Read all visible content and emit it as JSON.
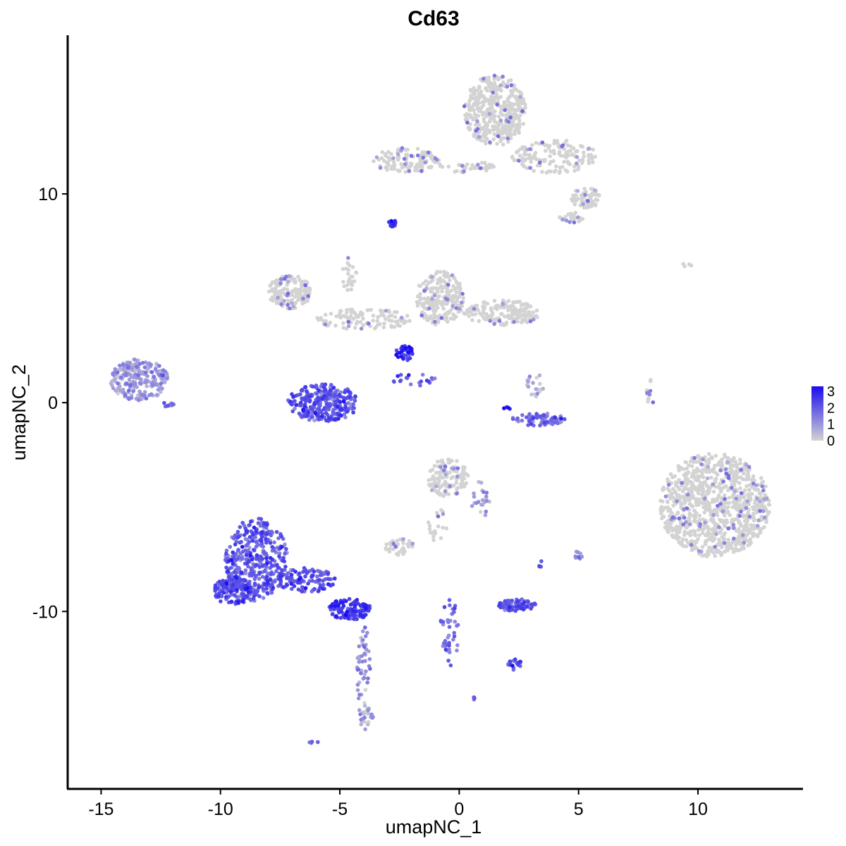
{
  "chart_data": {
    "type": "scatter",
    "title": "Cd63",
    "xlabel": "umapNC_1",
    "ylabel": "umapNC_2",
    "xlim": [
      -16.4,
      14.4
    ],
    "ylim": [
      -18.5,
      17.6
    ],
    "x_ticks": [
      -15,
      -10,
      -5,
      0,
      5,
      10
    ],
    "x_tick_labels": [
      "-15",
      "-10",
      "-5",
      "0",
      "5",
      "10"
    ],
    "y_ticks": [
      -10,
      0,
      10
    ],
    "y_tick_labels": [
      "-10",
      "0",
      "10"
    ],
    "grid": false,
    "color_scale": {
      "low": "#d3d3d3",
      "high": "#1a0cf0",
      "min": 0,
      "max": 3.3,
      "ticks": [
        0,
        1,
        2,
        3
      ],
      "tick_labels": [
        "0",
        "1",
        "2",
        "3"
      ],
      "legend_position": "right"
    },
    "clusters": [
      {
        "cx": 1.5,
        "cy": 14.0,
        "rx": 1.3,
        "ry": 1.7,
        "n": 420,
        "expr": 0.08
      },
      {
        "cx": -2.2,
        "cy": 11.6,
        "rx": 1.4,
        "ry": 0.6,
        "n": 110,
        "expr": 0.1
      },
      {
        "cx": 0.3,
        "cy": 11.3,
        "rx": 1.2,
        "ry": 0.3,
        "n": 40,
        "expr": 0.05
      },
      {
        "cx": 4.0,
        "cy": 11.8,
        "rx": 1.8,
        "ry": 0.8,
        "n": 150,
        "expr": 0.15
      },
      {
        "cx": 5.3,
        "cy": 9.8,
        "rx": 0.6,
        "ry": 0.5,
        "n": 60,
        "expr": 0.1
      },
      {
        "cx": 4.7,
        "cy": 8.9,
        "rx": 0.5,
        "ry": 0.3,
        "n": 25,
        "expr": 0.2
      },
      {
        "cx": -2.8,
        "cy": 8.6,
        "rx": 0.15,
        "ry": 0.2,
        "n": 18,
        "expr": 2.5
      },
      {
        "cx": -7.1,
        "cy": 5.3,
        "rx": 0.9,
        "ry": 0.8,
        "n": 160,
        "expr": 0.05
      },
      {
        "cx": -4.0,
        "cy": 4.0,
        "rx": 2.0,
        "ry": 0.5,
        "n": 110,
        "expr": 0.05
      },
      {
        "cx": -0.8,
        "cy": 5.0,
        "rx": 1.0,
        "ry": 1.3,
        "n": 220,
        "expr": 0.2
      },
      {
        "cx": 1.8,
        "cy": 4.3,
        "rx": 1.6,
        "ry": 0.6,
        "n": 170,
        "expr": 0.2
      },
      {
        "cx": -4.6,
        "cy": 6.2,
        "rx": 0.3,
        "ry": 1.0,
        "n": 25,
        "expr": 0.05
      },
      {
        "cx": -2.3,
        "cy": 2.4,
        "rx": 0.35,
        "ry": 0.4,
        "n": 40,
        "expr": 2.6
      },
      {
        "cx": -1.9,
        "cy": 1.1,
        "rx": 0.9,
        "ry": 0.3,
        "n": 20,
        "expr": 1.8
      },
      {
        "cx": -13.4,
        "cy": 1.1,
        "rx": 1.2,
        "ry": 1.0,
        "n": 240,
        "expr": 0.8
      },
      {
        "cx": -12.2,
        "cy": -0.1,
        "rx": 0.3,
        "ry": 0.1,
        "n": 10,
        "expr": 1.6
      },
      {
        "cx": -5.7,
        "cy": 0.0,
        "rx": 1.5,
        "ry": 0.9,
        "n": 280,
        "expr": 1.9
      },
      {
        "cx": 3.3,
        "cy": -0.8,
        "rx": 1.2,
        "ry": 0.3,
        "n": 70,
        "expr": 1.7
      },
      {
        "cx": 3.2,
        "cy": 0.8,
        "rx": 0.4,
        "ry": 0.6,
        "n": 20,
        "expr": 0.5
      },
      {
        "cx": 2.0,
        "cy": -0.3,
        "rx": 0.15,
        "ry": 0.1,
        "n": 4,
        "expr": 3.2
      },
      {
        "cx": 8.0,
        "cy": 0.5,
        "rx": 0.2,
        "ry": 0.6,
        "n": 15,
        "expr": 0.05
      },
      {
        "cx": 10.7,
        "cy": -4.9,
        "rx": 2.3,
        "ry": 2.5,
        "n": 950,
        "expr": 0.05
      },
      {
        "cx": -0.5,
        "cy": -3.6,
        "rx": 0.9,
        "ry": 0.9,
        "n": 130,
        "expr": 0.2
      },
      {
        "cx": 0.9,
        "cy": -4.6,
        "rx": 0.4,
        "ry": 0.9,
        "n": 25,
        "expr": 0.8
      },
      {
        "cx": -0.9,
        "cy": -5.9,
        "rx": 0.4,
        "ry": 0.9,
        "n": 20,
        "expr": 0.1
      },
      {
        "cx": -2.5,
        "cy": -6.9,
        "rx": 0.6,
        "ry": 0.4,
        "n": 40,
        "expr": 0.1
      },
      {
        "cx": -8.5,
        "cy": -7.5,
        "rx": 1.3,
        "ry": 2.0,
        "n": 380,
        "expr": 1.9
      },
      {
        "cx": -9.5,
        "cy": -9.0,
        "rx": 0.8,
        "ry": 0.7,
        "n": 130,
        "expr": 2.0
      },
      {
        "cx": -6.4,
        "cy": -8.5,
        "rx": 1.2,
        "ry": 0.6,
        "n": 110,
        "expr": 2.0
      },
      {
        "cx": -4.6,
        "cy": -9.9,
        "rx": 0.9,
        "ry": 0.5,
        "n": 130,
        "expr": 2.3
      },
      {
        "cx": -4.0,
        "cy": -12.8,
        "rx": 0.3,
        "ry": 2.2,
        "n": 45,
        "expr": 1.0
      },
      {
        "cx": -3.9,
        "cy": -15.0,
        "rx": 0.4,
        "ry": 0.7,
        "n": 25,
        "expr": 0.5
      },
      {
        "cx": 2.4,
        "cy": -9.7,
        "rx": 0.8,
        "ry": 0.3,
        "n": 80,
        "expr": 2.0
      },
      {
        "cx": 2.3,
        "cy": -12.5,
        "rx": 0.3,
        "ry": 0.3,
        "n": 20,
        "expr": 2.0
      },
      {
        "cx": -0.4,
        "cy": -11.0,
        "rx": 0.4,
        "ry": 1.6,
        "n": 40,
        "expr": 1.6
      },
      {
        "cx": 5.0,
        "cy": -7.3,
        "rx": 0.15,
        "ry": 0.3,
        "n": 8,
        "expr": 1.2
      },
      {
        "cx": 3.4,
        "cy": -7.7,
        "rx": 0.1,
        "ry": 0.2,
        "n": 4,
        "expr": 1.5
      },
      {
        "cx": 0.6,
        "cy": -14.2,
        "rx": 0.1,
        "ry": 0.1,
        "n": 4,
        "expr": 2.0
      },
      {
        "cx": -6.1,
        "cy": -16.3,
        "rx": 0.2,
        "ry": 0.1,
        "n": 4,
        "expr": 2.0
      },
      {
        "cx": 9.6,
        "cy": 6.6,
        "rx": 0.3,
        "ry": 0.1,
        "n": 4,
        "expr": 0.05
      }
    ]
  }
}
